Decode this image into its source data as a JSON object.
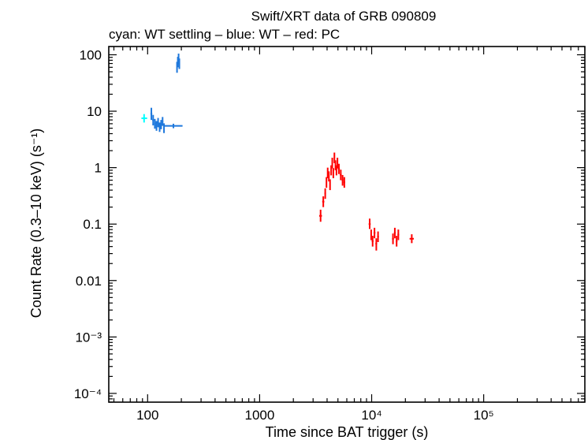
{
  "chart_data": {
    "type": "scatter",
    "title": "Swift/XRT data of GRB 090809",
    "subtitle": "cyan: WT settling – blue: WT – red: PC",
    "xlabel": "Time since BAT trigger (s)",
    "ylabel": "Count Rate (0.3–10 keV) (s⁻¹)",
    "xscale": "log",
    "yscale": "log",
    "xlim": [
      45,
      800000
    ],
    "ylim": [
      7e-05,
      140
    ],
    "x_ticks": [
      {
        "value": 100,
        "label": "100"
      },
      {
        "value": 1000,
        "label": "1000"
      },
      {
        "value": 10000,
        "label": "10⁴"
      },
      {
        "value": 100000,
        "label": "10⁵"
      }
    ],
    "y_ticks": [
      {
        "value": 100,
        "label": "100"
      },
      {
        "value": 10,
        "label": "10"
      },
      {
        "value": 1,
        "label": "1"
      },
      {
        "value": 0.1,
        "label": "0.1"
      },
      {
        "value": 0.01,
        "label": "0.01"
      },
      {
        "value": 0.001,
        "label": "10⁻³"
      },
      {
        "value": 0.0001,
        "label": "10⁻⁴"
      }
    ],
    "series": [
      {
        "name": "WT settling",
        "color": "#00ffff",
        "points": [
          {
            "x": 93,
            "y": 7.5,
            "xlo": 88,
            "xhi": 99,
            "ylo": 6.3,
            "yhi": 8.9
          }
        ]
      },
      {
        "name": "WT",
        "color": "#1e78dc",
        "points": [
          {
            "x": 108,
            "y": 9.0,
            "xlo": 106,
            "xhi": 110,
            "ylo": 7.0,
            "yhi": 11.5
          },
          {
            "x": 112,
            "y": 7.0,
            "xlo": 110,
            "xhi": 114,
            "ylo": 5.6,
            "yhi": 8.6
          },
          {
            "x": 116,
            "y": 6.0,
            "xlo": 114,
            "xhi": 118,
            "ylo": 4.9,
            "yhi": 7.3
          },
          {
            "x": 120,
            "y": 5.5,
            "xlo": 118,
            "xhi": 122,
            "ylo": 4.5,
            "yhi": 6.7
          },
          {
            "x": 124,
            "y": 6.3,
            "xlo": 122,
            "xhi": 126,
            "ylo": 5.2,
            "yhi": 7.6
          },
          {
            "x": 128,
            "y": 5.2,
            "xlo": 126,
            "xhi": 130,
            "ylo": 4.3,
            "yhi": 6.3
          },
          {
            "x": 132,
            "y": 5.8,
            "xlo": 130,
            "xhi": 134,
            "ylo": 4.8,
            "yhi": 7.0
          },
          {
            "x": 136,
            "y": 6.6,
            "xlo": 134,
            "xhi": 138,
            "ylo": 5.5,
            "yhi": 7.9
          },
          {
            "x": 140,
            "y": 5.0,
            "xlo": 138,
            "xhi": 142,
            "ylo": 4.1,
            "yhi": 6.1
          },
          {
            "x": 170,
            "y": 5.5,
            "xlo": 142,
            "xhi": 205,
            "ylo": 5.0,
            "yhi": 6.0
          },
          {
            "x": 183,
            "y": 60,
            "xlo": 182,
            "xhi": 184,
            "ylo": 48,
            "yhi": 75
          },
          {
            "x": 186,
            "y": 75,
            "xlo": 185,
            "xhi": 187,
            "ylo": 60,
            "yhi": 92
          },
          {
            "x": 189,
            "y": 85,
            "xlo": 188,
            "xhi": 190,
            "ylo": 68,
            "yhi": 105
          },
          {
            "x": 192,
            "y": 70,
            "xlo": 191,
            "xhi": 193,
            "ylo": 56,
            "yhi": 86
          }
        ]
      },
      {
        "name": "PC",
        "color": "#ff0000",
        "points": [
          {
            "x": 3500,
            "y": 0.14,
            "xlo": 3400,
            "xhi": 3600,
            "ylo": 0.11,
            "yhi": 0.18
          },
          {
            "x": 3700,
            "y": 0.25,
            "xlo": 3620,
            "xhi": 3780,
            "ylo": 0.2,
            "yhi": 0.31
          },
          {
            "x": 3850,
            "y": 0.35,
            "xlo": 3790,
            "xhi": 3910,
            "ylo": 0.28,
            "yhi": 0.43
          },
          {
            "x": 3950,
            "y": 0.55,
            "xlo": 3910,
            "xhi": 3990,
            "ylo": 0.44,
            "yhi": 0.68
          },
          {
            "x": 4050,
            "y": 0.8,
            "xlo": 4000,
            "xhi": 4100,
            "ylo": 0.65,
            "yhi": 1.0
          },
          {
            "x": 4150,
            "y": 0.7,
            "xlo": 4100,
            "xhi": 4200,
            "ylo": 0.57,
            "yhi": 0.86
          },
          {
            "x": 4250,
            "y": 0.5,
            "xlo": 4200,
            "xhi": 4300,
            "ylo": 0.4,
            "yhi": 0.62
          },
          {
            "x": 4350,
            "y": 0.9,
            "xlo": 4300,
            "xhi": 4400,
            "ylo": 0.73,
            "yhi": 1.1
          },
          {
            "x": 4450,
            "y": 1.2,
            "xlo": 4400,
            "xhi": 4500,
            "ylo": 0.97,
            "yhi": 1.5
          },
          {
            "x": 4550,
            "y": 0.8,
            "xlo": 4500,
            "xhi": 4600,
            "ylo": 0.65,
            "yhi": 0.98
          },
          {
            "x": 4650,
            "y": 1.5,
            "xlo": 4600,
            "xhi": 4700,
            "ylo": 1.2,
            "yhi": 1.85
          },
          {
            "x": 4750,
            "y": 1.1,
            "xlo": 4700,
            "xhi": 4800,
            "ylo": 0.9,
            "yhi": 1.35
          },
          {
            "x": 4850,
            "y": 0.9,
            "xlo": 4800,
            "xhi": 4900,
            "ylo": 0.73,
            "yhi": 1.1
          },
          {
            "x": 4950,
            "y": 1.2,
            "xlo": 4900,
            "xhi": 5000,
            "ylo": 0.97,
            "yhi": 1.5
          },
          {
            "x": 5100,
            "y": 0.95,
            "xlo": 5000,
            "xhi": 5200,
            "ylo": 0.77,
            "yhi": 1.17
          },
          {
            "x": 5300,
            "y": 0.75,
            "xlo": 5200,
            "xhi": 5400,
            "ylo": 0.6,
            "yhi": 0.92
          },
          {
            "x": 5500,
            "y": 0.6,
            "xlo": 5400,
            "xhi": 5600,
            "ylo": 0.48,
            "yhi": 0.74
          },
          {
            "x": 5700,
            "y": 0.55,
            "xlo": 5600,
            "xhi": 5800,
            "ylo": 0.44,
            "yhi": 0.68
          },
          {
            "x": 9600,
            "y": 0.1,
            "xlo": 9400,
            "xhi": 9800,
            "ylo": 0.082,
            "yhi": 0.125
          },
          {
            "x": 9900,
            "y": 0.065,
            "xlo": 9800,
            "xhi": 10000,
            "ylo": 0.052,
            "yhi": 0.08
          },
          {
            "x": 10200,
            "y": 0.05,
            "xlo": 10000,
            "xhi": 10400,
            "ylo": 0.04,
            "yhi": 0.062
          },
          {
            "x": 10600,
            "y": 0.07,
            "xlo": 10400,
            "xhi": 10800,
            "ylo": 0.056,
            "yhi": 0.086
          },
          {
            "x": 11000,
            "y": 0.045,
            "xlo": 10800,
            "xhi": 11200,
            "ylo": 0.034,
            "yhi": 0.056
          },
          {
            "x": 11400,
            "y": 0.06,
            "xlo": 11200,
            "xhi": 11600,
            "ylo": 0.048,
            "yhi": 0.074
          },
          {
            "x": 15500,
            "y": 0.055,
            "xlo": 15200,
            "xhi": 15800,
            "ylo": 0.044,
            "yhi": 0.068
          },
          {
            "x": 16100,
            "y": 0.07,
            "xlo": 15800,
            "xhi": 16400,
            "ylo": 0.056,
            "yhi": 0.086
          },
          {
            "x": 16700,
            "y": 0.05,
            "xlo": 16400,
            "xhi": 17000,
            "ylo": 0.04,
            "yhi": 0.062
          },
          {
            "x": 17300,
            "y": 0.065,
            "xlo": 17000,
            "xhi": 17600,
            "ylo": 0.052,
            "yhi": 0.08
          },
          {
            "x": 22800,
            "y": 0.055,
            "xlo": 21800,
            "xhi": 23800,
            "ylo": 0.046,
            "yhi": 0.066
          }
        ]
      }
    ]
  }
}
